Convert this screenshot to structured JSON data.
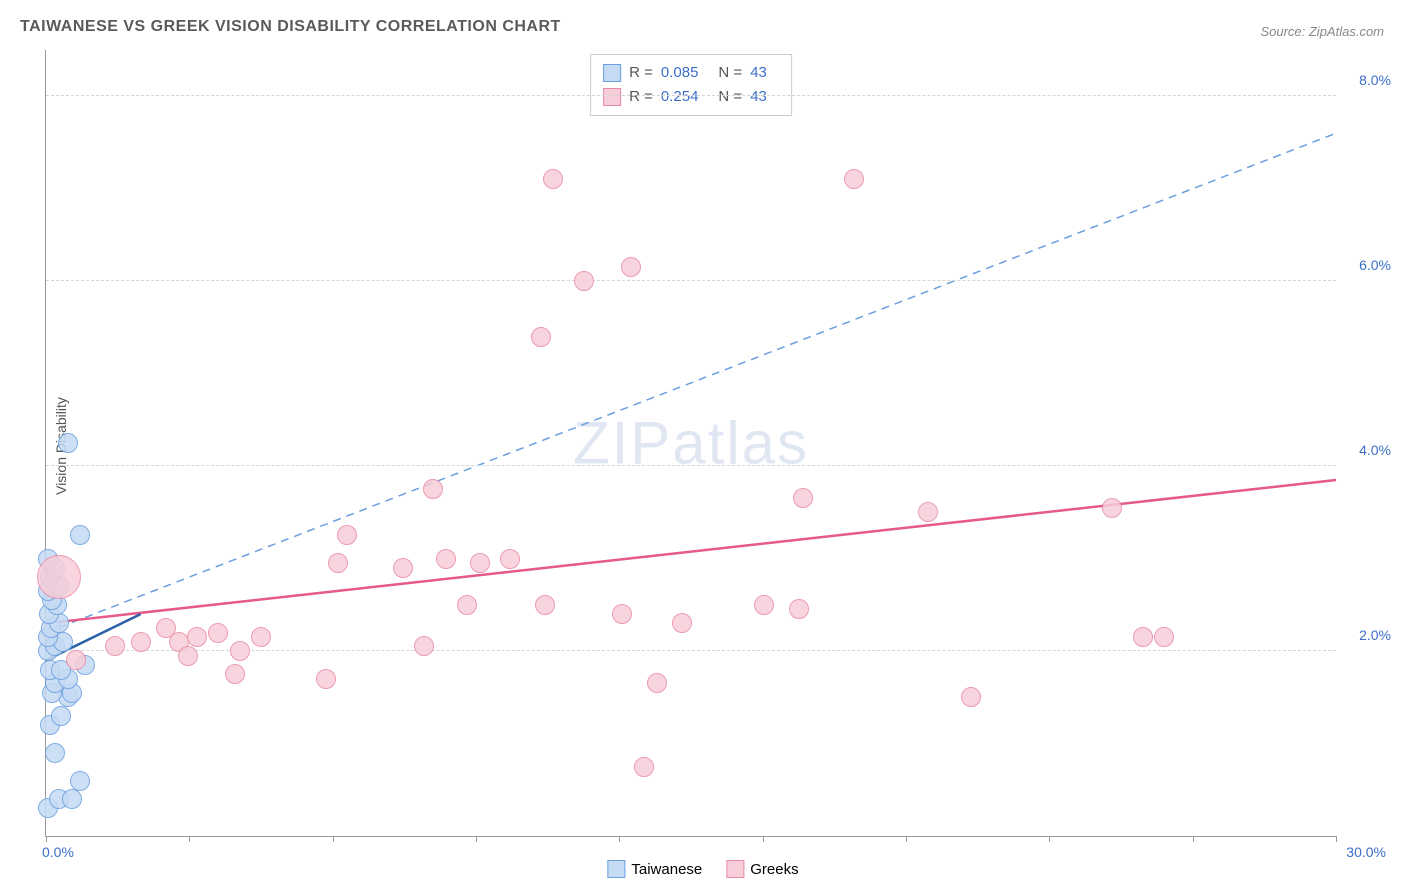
{
  "title": "TAIWANESE VS GREEK VISION DISABILITY CORRELATION CHART",
  "source_label": "Source: ZipAtlas.com",
  "y_axis_label": "Vision Disability",
  "watermark": {
    "prefix": "ZIP",
    "suffix": "atlas"
  },
  "chart": {
    "type": "scatter",
    "background_color": "#ffffff",
    "grid_color": "#d5d5d5",
    "axis_color": "#999999",
    "xlim": [
      0,
      30
    ],
    "ylim": [
      0,
      8.5
    ],
    "x_ticks_minor": [
      0,
      3.33,
      6.67,
      10,
      13.33,
      16.67,
      20,
      23.33,
      26.67,
      30
    ],
    "y_ticks": [
      {
        "value": 2.0,
        "label": "2.0%"
      },
      {
        "value": 4.0,
        "label": "4.0%"
      },
      {
        "value": 6.0,
        "label": "6.0%"
      },
      {
        "value": 8.0,
        "label": "8.0%"
      }
    ],
    "x_origin_label": "0.0%",
    "x_max_label": "30.0%",
    "point_radius": 10,
    "series": [
      {
        "name": "Taiwanese",
        "fill_color": "#c5daf3",
        "stroke_color": "#6b9fe0",
        "trend_color": "#2b5fa8",
        "trend_dash": "none",
        "trend": {
          "x1": 0.0,
          "y1": 1.9,
          "x2": 2.2,
          "y2": 2.4
        },
        "R": "0.085",
        "N": "43",
        "points": [
          {
            "x": 0.05,
            "y": 0.3
          },
          {
            "x": 0.3,
            "y": 0.4
          },
          {
            "x": 0.6,
            "y": 0.4
          },
          {
            "x": 0.8,
            "y": 0.6
          },
          {
            "x": 0.2,
            "y": 0.9
          },
          {
            "x": 0.1,
            "y": 1.2
          },
          {
            "x": 0.35,
            "y": 1.3
          },
          {
            "x": 0.5,
            "y": 1.5
          },
          {
            "x": 0.15,
            "y": 1.55
          },
          {
            "x": 0.6,
            "y": 1.55
          },
          {
            "x": 0.2,
            "y": 1.65
          },
          {
            "x": 0.5,
            "y": 1.7
          },
          {
            "x": 0.1,
            "y": 1.8
          },
          {
            "x": 0.35,
            "y": 1.8
          },
          {
            "x": 0.9,
            "y": 1.85
          },
          {
            "x": 0.05,
            "y": 2.0
          },
          {
            "x": 0.2,
            "y": 2.05
          },
          {
            "x": 0.4,
            "y": 2.1
          },
          {
            "x": 0.05,
            "y": 2.15
          },
          {
            "x": 0.12,
            "y": 2.25
          },
          {
            "x": 0.3,
            "y": 2.3
          },
          {
            "x": 0.08,
            "y": 2.4
          },
          {
            "x": 0.25,
            "y": 2.5
          },
          {
            "x": 0.15,
            "y": 2.55
          },
          {
            "x": 0.05,
            "y": 2.65
          },
          {
            "x": 0.3,
            "y": 2.7
          },
          {
            "x": 0.1,
            "y": 2.8
          },
          {
            "x": 0.2,
            "y": 2.9
          },
          {
            "x": 0.05,
            "y": 3.0
          },
          {
            "x": 0.8,
            "y": 3.25
          },
          {
            "x": 0.5,
            "y": 4.25
          }
        ]
      },
      {
        "name": "Greeks",
        "fill_color": "#f7cdd9",
        "stroke_color": "#e98aa5",
        "trend_color": "#e65a8a",
        "trend_dash": "8,6",
        "trend": {
          "x1": 0.0,
          "y1": 2.3,
          "x2": 30.0,
          "y2": 3.85
        },
        "dashed_trend": {
          "x1": 0.0,
          "y1": 2.2,
          "x2": 30.0,
          "y2": 7.6,
          "color": "#6b9fe0"
        },
        "R": "0.254",
        "N": "43",
        "points": [
          {
            "x": 0.7,
            "y": 1.9
          },
          {
            "x": 1.6,
            "y": 2.05
          },
          {
            "x": 2.2,
            "y": 2.1
          },
          {
            "x": 2.8,
            "y": 2.25
          },
          {
            "x": 3.1,
            "y": 2.1
          },
          {
            "x": 3.5,
            "y": 2.15
          },
          {
            "x": 4.0,
            "y": 2.2
          },
          {
            "x": 3.3,
            "y": 1.95
          },
          {
            "x": 4.5,
            "y": 2.0
          },
          {
            "x": 5.0,
            "y": 2.15
          },
          {
            "x": 4.4,
            "y": 1.75
          },
          {
            "x": 6.5,
            "y": 1.7
          },
          {
            "x": 6.8,
            "y": 2.95
          },
          {
            "x": 7.0,
            "y": 3.25
          },
          {
            "x": 8.3,
            "y": 2.9
          },
          {
            "x": 8.8,
            "y": 2.05
          },
          {
            "x": 9.3,
            "y": 3.0
          },
          {
            "x": 9.0,
            "y": 3.75
          },
          {
            "x": 9.8,
            "y": 2.5
          },
          {
            "x": 10.1,
            "y": 2.95
          },
          {
            "x": 10.8,
            "y": 3.0
          },
          {
            "x": 11.6,
            "y": 2.5
          },
          {
            "x": 11.5,
            "y": 5.4
          },
          {
            "x": 11.8,
            "y": 7.1
          },
          {
            "x": 12.5,
            "y": 6.0
          },
          {
            "x": 13.4,
            "y": 2.4
          },
          {
            "x": 13.6,
            "y": 6.15
          },
          {
            "x": 13.9,
            "y": 0.75
          },
          {
            "x": 14.8,
            "y": 2.3
          },
          {
            "x": 14.2,
            "y": 1.65
          },
          {
            "x": 16.7,
            "y": 2.5
          },
          {
            "x": 17.5,
            "y": 2.45
          },
          {
            "x": 17.6,
            "y": 3.65
          },
          {
            "x": 18.8,
            "y": 7.1
          },
          {
            "x": 20.5,
            "y": 3.5
          },
          {
            "x": 21.5,
            "y": 1.5
          },
          {
            "x": 24.8,
            "y": 3.55
          },
          {
            "x": 25.5,
            "y": 2.15
          },
          {
            "x": 26.0,
            "y": 2.15
          },
          {
            "x": 0.3,
            "y": 2.8,
            "r": 22
          }
        ]
      }
    ]
  },
  "stats_legend_labels": {
    "R": "R =",
    "N": "N ="
  },
  "bottom_legend": [
    {
      "label": "Taiwanese",
      "fill": "#c5daf3",
      "stroke": "#6b9fe0"
    },
    {
      "label": "Greeks",
      "fill": "#f7cdd9",
      "stroke": "#e98aa5"
    }
  ]
}
